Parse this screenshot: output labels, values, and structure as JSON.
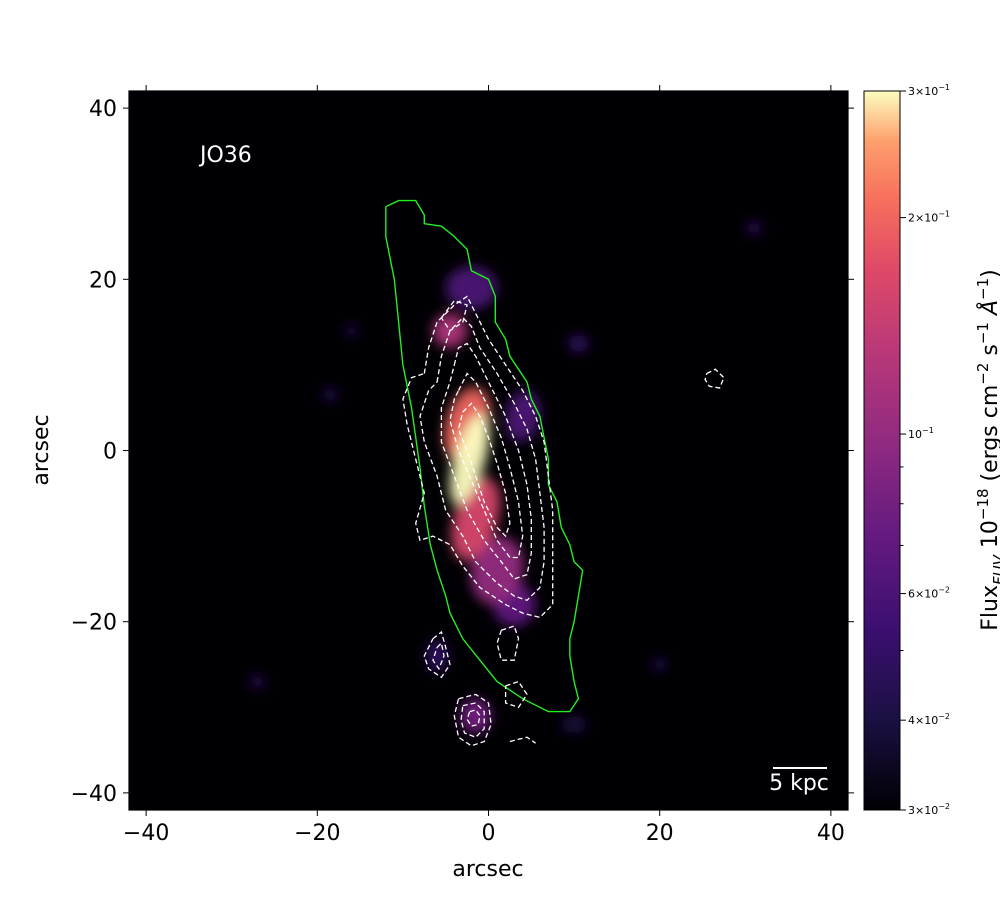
{
  "chart_data": {
    "type": "heatmap",
    "object_label": "JO36",
    "xlabel": "arcsec",
    "ylabel": "arcsec",
    "xlim": [
      -42,
      42
    ],
    "ylim": [
      -42,
      42
    ],
    "x_ticks": [
      -40,
      -20,
      0,
      20,
      40
    ],
    "y_ticks": [
      -40,
      -20,
      0,
      20,
      40
    ],
    "x_tick_labels": [
      "−40",
      "−20",
      "0",
      "20",
      "40"
    ],
    "y_tick_labels": [
      "−40",
      "−20",
      "0",
      "20",
      "40"
    ],
    "scale_bar_label": "5 kpc",
    "colormap": "magma",
    "colorbar": {
      "scale": "log",
      "vmin": 0.03,
      "vmax": 0.3,
      "label_prefix": "Flux",
      "label_sub": "FUV",
      "label_rest": " 10",
      "label_exp": "−18",
      "label_units_open": " (ergs cm",
      "label_units_exp1": "−2",
      "label_units_mid": " s",
      "label_units_exp2": "−1",
      "label_units_angstrom": " Å",
      "label_units_exp3": "−1",
      "label_units_close": ")",
      "major_ticks": [
        {
          "value": 0.3,
          "mantissa": "3",
          "exp": "−1"
        },
        {
          "value": 0.2,
          "mantissa": "2",
          "exp": "−1"
        },
        {
          "value": 0.1,
          "mantissa": "",
          "exp": "−1"
        },
        {
          "value": 0.06,
          "mantissa": "6",
          "exp": "−2"
        },
        {
          "value": 0.04,
          "mantissa": "4",
          "exp": "−2"
        },
        {
          "value": 0.03,
          "mantissa": "3",
          "exp": "−2"
        }
      ],
      "minor_ticks": [
        0.09,
        0.08,
        0.07,
        0.05
      ]
    },
    "galaxy_outline_color": "#22ee22",
    "contour_color": "#ffffff",
    "galaxy_outline": [
      [
        -12,
        28.5
      ],
      [
        -10.5,
        29.2
      ],
      [
        -8.5,
        29.2
      ],
      [
        -7.5,
        27.5
      ],
      [
        -7.5,
        26.5
      ],
      [
        -5.5,
        26.2
      ],
      [
        -4,
        25
      ],
      [
        -2.5,
        23.5
      ],
      [
        -2,
        21
      ],
      [
        0,
        20
      ],
      [
        0.8,
        18
      ],
      [
        0.8,
        15
      ],
      [
        2,
        13
      ],
      [
        2.5,
        11
      ],
      [
        3.5,
        9.5
      ],
      [
        4.5,
        8
      ],
      [
        5,
        6
      ],
      [
        6,
        4
      ],
      [
        6.5,
        1.5
      ],
      [
        7,
        -1
      ],
      [
        7,
        -4
      ],
      [
        8,
        -6
      ],
      [
        8.5,
        -9
      ],
      [
        9.5,
        -11
      ],
      [
        10,
        -13
      ],
      [
        11,
        -14
      ],
      [
        10.5,
        -17
      ],
      [
        10,
        -20
      ],
      [
        9.5,
        -22
      ],
      [
        9.5,
        -24
      ],
      [
        10,
        -27
      ],
      [
        10.5,
        -29
      ],
      [
        9.5,
        -30.5
      ],
      [
        7,
        -30.5
      ],
      [
        4,
        -29
      ],
      [
        1,
        -27
      ],
      [
        -1,
        -24.5
      ],
      [
        -3,
        -22
      ],
      [
        -4.5,
        -19
      ],
      [
        -5,
        -17
      ],
      [
        -6,
        -14
      ],
      [
        -6.8,
        -11
      ],
      [
        -7.5,
        -6.5
      ],
      [
        -8,
        -2
      ],
      [
        -9,
        5
      ],
      [
        -10,
        10
      ],
      [
        -10.5,
        15
      ],
      [
        -11,
        20
      ],
      [
        -12,
        25
      ],
      [
        -12,
        28.5
      ]
    ],
    "contours": [
      [
        [
          -7.5,
          9
        ],
        [
          -7,
          12
        ],
        [
          -6,
          15
        ],
        [
          -4,
          17
        ],
        [
          -2.5,
          18
        ],
        [
          -1.5,
          16
        ],
        [
          0,
          13
        ],
        [
          2,
          10
        ],
        [
          4,
          7
        ],
        [
          5.5,
          4
        ],
        [
          6.5,
          1
        ],
        [
          7,
          -3
        ],
        [
          7.5,
          -7
        ],
        [
          7.5,
          -11
        ],
        [
          7.5,
          -15
        ],
        [
          7.5,
          -18
        ],
        [
          6,
          -19.5
        ],
        [
          4,
          -19
        ],
        [
          2,
          -18
        ],
        [
          -1,
          -16
        ],
        [
          -3,
          -13.5
        ],
        [
          -4.5,
          -11
        ],
        [
          -6.5,
          -10
        ],
        [
          -8,
          -10.5
        ],
        [
          -8.5,
          -8.5
        ],
        [
          -7.5,
          -5
        ],
        [
          -8.5,
          -1
        ],
        [
          -9.5,
          3
        ],
        [
          -10,
          6
        ],
        [
          -9,
          8.5
        ],
        [
          -7.5,
          9
        ]
      ],
      [
        [
          -6,
          8
        ],
        [
          -5.5,
          11
        ],
        [
          -4.5,
          14
        ],
        [
          -3,
          15.5
        ],
        [
          -2,
          14.5
        ],
        [
          -1,
          12
        ],
        [
          1,
          9
        ],
        [
          3,
          5.5
        ],
        [
          4.5,
          2.5
        ],
        [
          5.5,
          -1
        ],
        [
          6,
          -5
        ],
        [
          6.5,
          -9
        ],
        [
          6.5,
          -13
        ],
        [
          6,
          -16
        ],
        [
          4.5,
          -17.5
        ],
        [
          3,
          -17
        ],
        [
          1,
          -15.5
        ],
        [
          -1.5,
          -13
        ],
        [
          -3,
          -10
        ],
        [
          -5,
          -7
        ],
        [
          -6,
          -3
        ],
        [
          -7.5,
          1
        ],
        [
          -8,
          4
        ],
        [
          -7,
          7
        ],
        [
          -6,
          8
        ]
      ],
      [
        [
          -4,
          10
        ],
        [
          -3.5,
          12
        ],
        [
          -2.5,
          12.5
        ],
        [
          -1.5,
          11
        ],
        [
          0,
          8
        ],
        [
          2,
          4
        ],
        [
          3.5,
          0
        ],
        [
          4.5,
          -4
        ],
        [
          5,
          -8
        ],
        [
          5,
          -12
        ],
        [
          4.5,
          -14.5
        ],
        [
          3,
          -15
        ],
        [
          1.5,
          -13
        ],
        [
          -0.5,
          -10.5
        ],
        [
          -2.5,
          -7
        ],
        [
          -4,
          -3
        ],
        [
          -5.5,
          1
        ],
        [
          -5.5,
          5
        ],
        [
          -4.5,
          8
        ],
        [
          -4,
          10
        ]
      ],
      [
        [
          -3.5,
          7
        ],
        [
          -2.5,
          9
        ],
        [
          -1.5,
          8
        ],
        [
          0,
          5
        ],
        [
          1.5,
          1.5
        ],
        [
          2.5,
          -2
        ],
        [
          3.5,
          -6
        ],
        [
          4,
          -10
        ],
        [
          3.5,
          -12.5
        ],
        [
          2.5,
          -12.5
        ],
        [
          1,
          -10.5
        ],
        [
          -0.5,
          -7
        ],
        [
          -2,
          -3.5
        ],
        [
          -3.5,
          0
        ],
        [
          -4.5,
          3.5
        ],
        [
          -4,
          6
        ],
        [
          -3.5,
          7
        ]
      ],
      [
        [
          -3,
          4.5
        ],
        [
          -2,
          5.5
        ],
        [
          -1,
          4
        ],
        [
          0,
          1.5
        ],
        [
          1,
          -1.5
        ],
        [
          2,
          -5
        ],
        [
          2.5,
          -8.5
        ],
        [
          2,
          -10
        ],
        [
          1,
          -9
        ],
        [
          -0.5,
          -6
        ],
        [
          -1.5,
          -3
        ],
        [
          -2.5,
          0
        ],
        [
          -3.5,
          2.5
        ],
        [
          -3,
          4.5
        ]
      ],
      [
        [
          -5.5,
          15.5
        ],
        [
          -4,
          17.5
        ],
        [
          -2.5,
          17
        ],
        [
          -3,
          15
        ],
        [
          -4.5,
          14
        ],
        [
          -5.5,
          15.5
        ]
      ],
      [
        [
          -6.5,
          -22
        ],
        [
          -5.5,
          -21.2
        ],
        [
          -5,
          -23
        ],
        [
          -4.5,
          -25
        ],
        [
          -5.5,
          -26.5
        ],
        [
          -7,
          -25.5
        ],
        [
          -7.5,
          -24
        ],
        [
          -6.5,
          -22
        ]
      ],
      [
        [
          -6,
          -23
        ],
        [
          -5.5,
          -22.5
        ],
        [
          -5.2,
          -24
        ],
        [
          -5.8,
          -25.5
        ],
        [
          -6.5,
          -24.5
        ],
        [
          -6,
          -23
        ]
      ],
      [
        [
          -3.5,
          -29
        ],
        [
          -1.5,
          -28.5
        ],
        [
          0,
          -29.5
        ],
        [
          0.3,
          -32
        ],
        [
          -0.5,
          -34
        ],
        [
          -2,
          -34.5
        ],
        [
          -3.5,
          -33.5
        ],
        [
          -4,
          -31
        ],
        [
          -3.5,
          -29
        ]
      ],
      [
        [
          -3,
          -29.8
        ],
        [
          -1.5,
          -29.5
        ],
        [
          -0.5,
          -30.5
        ],
        [
          -0.5,
          -32.5
        ],
        [
          -1.5,
          -33.5
        ],
        [
          -2.8,
          -33
        ],
        [
          -3.2,
          -31.5
        ],
        [
          -3,
          -29.8
        ]
      ],
      [
        [
          -2.2,
          -30.5
        ],
        [
          -1.5,
          -30.3
        ],
        [
          -1,
          -31
        ],
        [
          -1.2,
          -32
        ],
        [
          -2,
          -32.2
        ],
        [
          -2.5,
          -31.4
        ],
        [
          -2.2,
          -30.5
        ]
      ],
      [
        [
          1.5,
          -21
        ],
        [
          3,
          -20.5
        ],
        [
          3.5,
          -22
        ],
        [
          3,
          -24.5
        ],
        [
          1.5,
          -24.5
        ],
        [
          1,
          -22.5
        ],
        [
          1.5,
          -21
        ]
      ],
      [
        [
          2,
          -27.5
        ],
        [
          3.5,
          -27
        ],
        [
          4.5,
          -28.5
        ],
        [
          3.5,
          -30
        ],
        [
          2,
          -29.5
        ],
        [
          2,
          -27.5
        ]
      ],
      [
        [
          2.5,
          -34
        ],
        [
          4.5,
          -33.5
        ],
        [
          5.5,
          -34.2
        ]
      ],
      [
        [
          25.5,
          9
        ],
        [
          26.5,
          9.5
        ],
        [
          27.5,
          8.5
        ],
        [
          27,
          7.3
        ],
        [
          25.8,
          7.5
        ],
        [
          25.3,
          8.3
        ],
        [
          25.5,
          9
        ]
      ]
    ],
    "emission_blobs": [
      {
        "x": -2.2,
        "y": -1,
        "sx": 1.8,
        "sy": 5.5,
        "rot": 16,
        "v": 0.3
      },
      {
        "x": -2.5,
        "y": 3,
        "sx": 2.5,
        "sy": 4.5,
        "rot": 16,
        "v": 0.2
      },
      {
        "x": -1.5,
        "y": -8,
        "sx": 2.5,
        "sy": 5,
        "rot": 18,
        "v": 0.16
      },
      {
        "x": 1,
        "y": -14,
        "sx": 3,
        "sy": 4,
        "rot": 15,
        "v": 0.1
      },
      {
        "x": -4.5,
        "y": 14,
        "sx": 2,
        "sy": 2,
        "rot": 0,
        "v": 0.12
      },
      {
        "x": -2,
        "y": 19,
        "sx": 3,
        "sy": 2.5,
        "rot": 0,
        "v": 0.06
      },
      {
        "x": -1.5,
        "y": -31,
        "sx": 1.8,
        "sy": 2,
        "rot": 0,
        "v": 0.08
      },
      {
        "x": -6,
        "y": -24,
        "sx": 1.2,
        "sy": 1.8,
        "rot": 0,
        "v": 0.05
      },
      {
        "x": 3,
        "y": -18,
        "sx": 2.5,
        "sy": 2.5,
        "rot": 0,
        "v": 0.07
      },
      {
        "x": 4,
        "y": 4,
        "sx": 2,
        "sy": 3,
        "rot": 10,
        "v": 0.06
      },
      {
        "x": 10.5,
        "y": 12.5,
        "sx": 1.2,
        "sy": 1,
        "rot": 0,
        "v": 0.05
      },
      {
        "x": -18.5,
        "y": 6.5,
        "sx": 0.8,
        "sy": 0.8,
        "rot": 0,
        "v": 0.045
      },
      {
        "x": -27,
        "y": -27,
        "sx": 0.8,
        "sy": 0.7,
        "rot": 0,
        "v": 0.05
      },
      {
        "x": 31,
        "y": 26,
        "sx": 0.9,
        "sy": 0.7,
        "rot": 0,
        "v": 0.05
      },
      {
        "x": -16,
        "y": 14,
        "sx": 0.7,
        "sy": 0.7,
        "rot": 0,
        "v": 0.045
      },
      {
        "x": 20,
        "y": -25,
        "sx": 0.8,
        "sy": 0.7,
        "rot": 0,
        "v": 0.045
      },
      {
        "x": 10,
        "y": -32,
        "sx": 1.5,
        "sy": 1,
        "rot": 0,
        "v": 0.04
      }
    ]
  }
}
